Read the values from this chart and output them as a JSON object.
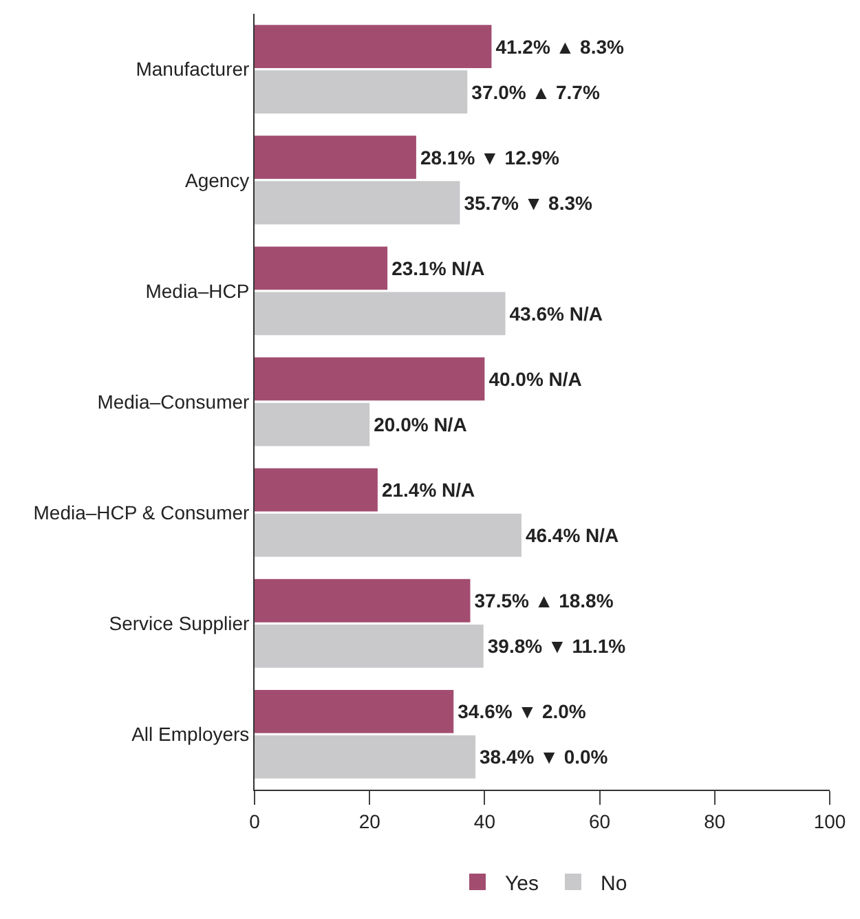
{
  "chart_data": {
    "type": "bar",
    "orientation": "horizontal",
    "categories": [
      "Manufacturer",
      "Agency",
      "Media–HCP",
      "Media–Consumer",
      "Media–HCP & Consumer",
      "Service Supplier",
      "All Employers"
    ],
    "series": [
      {
        "name": "Yes",
        "color": "#a24d70",
        "values": [
          41.2,
          28.1,
          23.1,
          40.0,
          21.4,
          37.5,
          34.6
        ],
        "value_labels": [
          "41.2% ▲ 8.3%",
          "28.1% ▼ 12.9%",
          "23.1% N/A",
          "40.0% N/A",
          "21.4% N/A",
          "37.5% ▲ 18.8%",
          "34.6% ▼ 2.0%"
        ]
      },
      {
        "name": "No",
        "color": "#c9c9cb",
        "values": [
          37.0,
          35.7,
          43.6,
          20.0,
          46.4,
          39.8,
          38.4
        ],
        "value_labels": [
          "37.0% ▲ 7.7%",
          "35.7% ▼ 8.3%",
          "43.6% N/A",
          "20.0% N/A",
          "46.4% N/A",
          "39.8% ▼ 11.1%",
          "38.4% ▼ 0.0%"
        ]
      }
    ],
    "xlim": [
      0,
      100
    ],
    "xticks": [
      0,
      20,
      40,
      60,
      80,
      100
    ],
    "legend": "bottom"
  }
}
